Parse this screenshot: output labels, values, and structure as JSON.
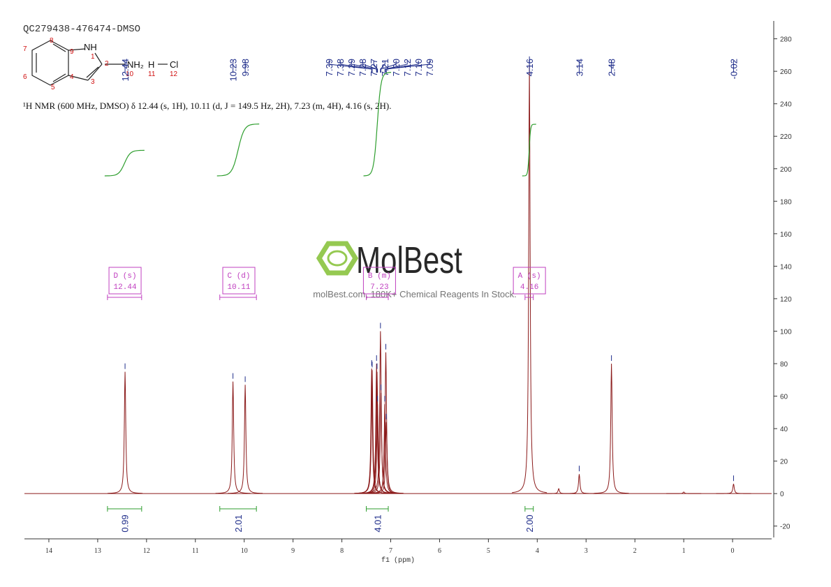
{
  "header": {
    "title": "QC279438-476474-DMSO",
    "description": "¹H NMR (600 MHz, DMSO) δ 12.44 (s, 1H), 10.11 (d, J = 149.5 Hz, 2H), 7.23 (m, 4H), 4.16 (s, 2H)."
  },
  "structure": {
    "atoms": [
      "NH",
      "NH₂",
      "H",
      "Cl"
    ],
    "numbers": [
      "1",
      "2",
      "3",
      "4",
      "5",
      "6",
      "7",
      "8",
      "9",
      "10",
      "11",
      "12"
    ]
  },
  "watermark": {
    "brand": "MolBest",
    "tagline": "molBest.com, 180K+ Chemical Reagents In Stock."
  },
  "chart_data": {
    "type": "spectrum",
    "xlabel": "f1 (ppm)",
    "xlim": [
      14.5,
      -0.8
    ],
    "xticks": [
      14,
      13,
      12,
      11,
      10,
      9,
      8,
      7,
      6,
      5,
      4,
      3,
      2,
      1,
      0
    ],
    "ylim": [
      -27,
      291
    ],
    "yticks": [
      280,
      260,
      240,
      220,
      200,
      180,
      160,
      140,
      120,
      100,
      80,
      60,
      40,
      20,
      0,
      -20
    ],
    "color": "#8b1a1a",
    "label_color": "#1f2d8a",
    "integral_color": "#2e9e2e",
    "multiplet_color": "#c040c0",
    "peaks": {
      "ppm": [
        12.44,
        10.23,
        9.98,
        7.39,
        7.38,
        7.29,
        7.28,
        7.27,
        7.21,
        7.2,
        7.12,
        7.1,
        7.09,
        4.16,
        3.56,
        3.14,
        2.48,
        1.0,
        -0.02
      ],
      "heights": [
        75,
        69,
        67,
        77,
        76,
        80,
        75,
        55,
        100,
        62,
        55,
        87,
        44,
        264,
        3,
        12,
        80,
        1,
        6
      ]
    },
    "peak_labels": {
      "values": [
        12.44,
        10.23,
        9.98,
        7.39,
        7.38,
        7.29,
        7.28,
        7.27,
        7.21,
        7.2,
        7.12,
        7.1,
        7.09,
        4.16,
        3.14,
        2.48,
        -0.02
      ],
      "value_labels": [
        "12.44",
        "10.23",
        "9.98",
        "7.39",
        "7.38",
        "7.29",
        "7.28",
        "7.27",
        "7.21",
        "7.20",
        "7.12",
        "7.10",
        "7.09",
        "4.16",
        "3.14",
        "2.48",
        "-0.02"
      ]
    },
    "multiplets": {
      "labels": [
        "D (s)",
        "C (d)",
        "B (m)",
        "A (s)"
      ],
      "shifts": [
        12.44,
        10.11,
        7.23,
        4.16
      ],
      "ranges": [
        [
          12.8,
          12.1
        ],
        [
          10.5,
          9.75
        ],
        [
          7.5,
          7.05
        ],
        [
          4.25,
          4.08
        ]
      ]
    },
    "integrals": {
      "ranges": [
        [
          12.8,
          12.1
        ],
        [
          10.5,
          9.75
        ],
        [
          7.5,
          7.05
        ],
        [
          4.25,
          4.08
        ]
      ],
      "values": [
        0.99,
        2.01,
        4.01,
        2
      ],
      "value_labels": [
        "0.99",
        "2.01",
        "4.01",
        "2.00"
      ]
    }
  }
}
